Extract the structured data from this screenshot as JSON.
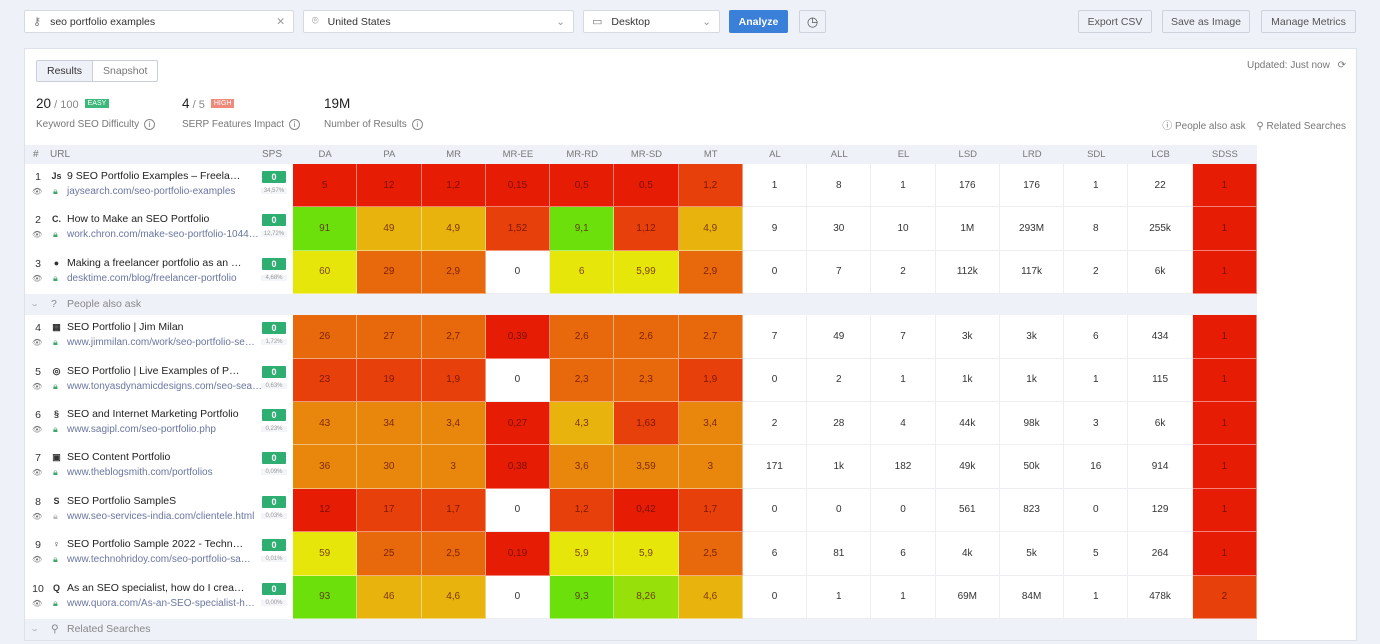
{
  "toolbar": {
    "keyword": "seo portfolio examples",
    "location": "United States",
    "device": "Desktop",
    "analyze": "Analyze",
    "export_csv": "Export CSV",
    "save_image": "Save as Image",
    "manage_metrics": "Manage Metrics"
  },
  "tabs": {
    "results": "Results",
    "snapshot": "Snapshot"
  },
  "updated": {
    "label": "Updated:",
    "value": "Just now"
  },
  "stats": {
    "difficulty": {
      "value": "20",
      "max": "/ 100",
      "badge": "EASY",
      "badge_color": "#3db87a",
      "label": "Keyword SEO Difficulty"
    },
    "serp": {
      "value": "4",
      "max": "/ 5",
      "badge": "HIGH",
      "badge_color": "#ef8a7a",
      "label": "SERP Features Impact"
    },
    "results": {
      "value": "19M",
      "label": "Number of Results"
    }
  },
  "features": {
    "paa": "People also ask",
    "related": "Related Searches"
  },
  "table": {
    "hash": "#",
    "url_header": "URL",
    "sps_header": "SPS",
    "columns": [
      "DA",
      "PA",
      "MR",
      "MR-EE",
      "MR-RD",
      "MR-SD",
      "MT",
      "AL",
      "ALL",
      "EL",
      "LSD",
      "LRD",
      "SDL",
      "LCB",
      "SDSS"
    ],
    "palette": {
      "r": "#e61d04",
      "ro": "#e8400b",
      "o": "#e8680c",
      "oa": "#e8870c",
      "a": "#e8b30c",
      "y": "#e6e60a",
      "yg": "#98e00a",
      "g": "#6ce00a",
      "w": "#ffffff"
    },
    "rows": [
      {
        "n": "1",
        "fav": "Js",
        "title": "9 SEO Portfolio Examples – Freela…",
        "url": "jaysearch.com/seo-portfolio-examples",
        "sps": "0",
        "pct": "34,57%",
        "values": [
          "5",
          "12",
          "1,2",
          "0,15",
          "0,5",
          "0,5",
          "1,2",
          "1",
          "8",
          "1",
          "176",
          "176",
          "1",
          "22",
          "1"
        ],
        "colors": [
          "r",
          "r",
          "r",
          "r",
          "r",
          "r",
          "ro",
          "w",
          "w",
          "w",
          "w",
          "w",
          "w",
          "w",
          "r"
        ]
      },
      {
        "n": "2",
        "fav": "C.",
        "title": "How to Make an SEO Portfolio",
        "url": "work.chron.com/make-seo-portfolio-1044…",
        "sps": "0",
        "pct": "12,72%",
        "values": [
          "91",
          "49",
          "4,9",
          "1,52",
          "9,1",
          "1,12",
          "4,9",
          "9",
          "30",
          "10",
          "1M",
          "293M",
          "8",
          "255k",
          "1"
        ],
        "colors": [
          "g",
          "a",
          "a",
          "ro",
          "g",
          "ro",
          "a",
          "w",
          "w",
          "w",
          "w",
          "w",
          "w",
          "w",
          "r"
        ]
      },
      {
        "n": "3",
        "fav": "●",
        "title": "Making a freelancer portfolio as an …",
        "url": "desktime.com/blog/freelancer-portfolio",
        "sps": "0",
        "pct": "4,68%",
        "values": [
          "60",
          "29",
          "2,9",
          "0",
          "6",
          "5,99",
          "2,9",
          "0",
          "7",
          "2",
          "112k",
          "117k",
          "2",
          "6k",
          "1"
        ],
        "colors": [
          "y",
          "o",
          "o",
          "w",
          "y",
          "y",
          "o",
          "w",
          "w",
          "w",
          "w",
          "w",
          "w",
          "w",
          "r"
        ]
      },
      {
        "sep": "paa"
      },
      {
        "n": "4",
        "fav": "▦",
        "title": "SEO Portfolio | Jim Milan",
        "url": "www.jimmilan.com/work/seo-portfolio-se…",
        "sps": "0",
        "pct": "1,72%",
        "values": [
          "26",
          "27",
          "2,7",
          "0,39",
          "2,6",
          "2,6",
          "2,7",
          "7",
          "49",
          "7",
          "3k",
          "3k",
          "6",
          "434",
          "1"
        ],
        "colors": [
          "o",
          "o",
          "o",
          "r",
          "o",
          "o",
          "o",
          "w",
          "w",
          "w",
          "w",
          "w",
          "w",
          "w",
          "r"
        ]
      },
      {
        "n": "5",
        "fav": "◎",
        "title": "SEO Portfolio | Live Examples of P…",
        "url": "www.tonyasdynamicdesigns.com/seo-sea…",
        "sps": "0",
        "pct": "0,63%",
        "values": [
          "23",
          "19",
          "1,9",
          "0",
          "2,3",
          "2,3",
          "1,9",
          "0",
          "2",
          "1",
          "1k",
          "1k",
          "1",
          "115",
          "1"
        ],
        "colors": [
          "ro",
          "ro",
          "ro",
          "w",
          "o",
          "o",
          "ro",
          "w",
          "w",
          "w",
          "w",
          "w",
          "w",
          "w",
          "r"
        ]
      },
      {
        "n": "6",
        "fav": "§",
        "title": "SEO and Internet Marketing Portfolio",
        "url": "www.sagipl.com/seo-portfolio.php",
        "sps": "0",
        "pct": "0,23%",
        "values": [
          "43",
          "34",
          "3,4",
          "0,27",
          "4,3",
          "1,63",
          "3,4",
          "2",
          "28",
          "4",
          "44k",
          "98k",
          "3",
          "6k",
          "1"
        ],
        "colors": [
          "oa",
          "oa",
          "oa",
          "r",
          "a",
          "ro",
          "oa",
          "w",
          "w",
          "w",
          "w",
          "w",
          "w",
          "w",
          "r"
        ]
      },
      {
        "n": "7",
        "fav": "▣",
        "title": "SEO Content Portfolio",
        "url": "www.theblogsmith.com/portfolios",
        "sps": "0",
        "pct": "0,09%",
        "values": [
          "36",
          "30",
          "3",
          "0,38",
          "3,6",
          "3,59",
          "3",
          "171",
          "1k",
          "182",
          "49k",
          "50k",
          "16",
          "914",
          "1"
        ],
        "colors": [
          "oa",
          "oa",
          "oa",
          "r",
          "oa",
          "oa",
          "oa",
          "w",
          "w",
          "w",
          "w",
          "w",
          "w",
          "w",
          "r"
        ]
      },
      {
        "n": "8",
        "fav": "S",
        "title": "SEO Portfolio SampleS",
        "url": "www.seo-services-india.com/clientele.html",
        "sps": "0",
        "pct": "0,03%",
        "values": [
          "12",
          "17",
          "1,7",
          "0",
          "1,2",
          "0,42",
          "1,7",
          "0",
          "0",
          "0",
          "561",
          "823",
          "0",
          "129",
          "1"
        ],
        "colors": [
          "r",
          "ro",
          "ro",
          "w",
          "ro",
          "r",
          "ro",
          "w",
          "w",
          "w",
          "w",
          "w",
          "w",
          "w",
          "r"
        ]
      },
      {
        "n": "9",
        "fav": "♀",
        "title": "SEO Portfolio Sample 2022 - Techn…",
        "url": "www.technohridoy.com/seo-portfolio-sa…",
        "sps": "0",
        "pct": "0,01%",
        "values": [
          "59",
          "25",
          "2,5",
          "0,19",
          "5,9",
          "5,9",
          "2,5",
          "6",
          "81",
          "6",
          "4k",
          "5k",
          "5",
          "264",
          "1"
        ],
        "colors": [
          "y",
          "o",
          "o",
          "r",
          "y",
          "y",
          "o",
          "w",
          "w",
          "w",
          "w",
          "w",
          "w",
          "w",
          "r"
        ]
      },
      {
        "n": "10",
        "fav": "Q",
        "title": "As an SEO specialist, how do I crea…",
        "url": "www.quora.com/As-an-SEO-specialist-h…",
        "sps": "0",
        "pct": "0,00%",
        "values": [
          "93",
          "46",
          "4,6",
          "0",
          "9,3",
          "8,26",
          "4,6",
          "0",
          "1",
          "1",
          "69M",
          "84M",
          "1",
          "478k",
          "2"
        ],
        "colors": [
          "g",
          "a",
          "a",
          "w",
          "g",
          "yg",
          "a",
          "w",
          "w",
          "w",
          "w",
          "w",
          "w",
          "w",
          "ro"
        ]
      },
      {
        "sep": "related"
      }
    ]
  }
}
